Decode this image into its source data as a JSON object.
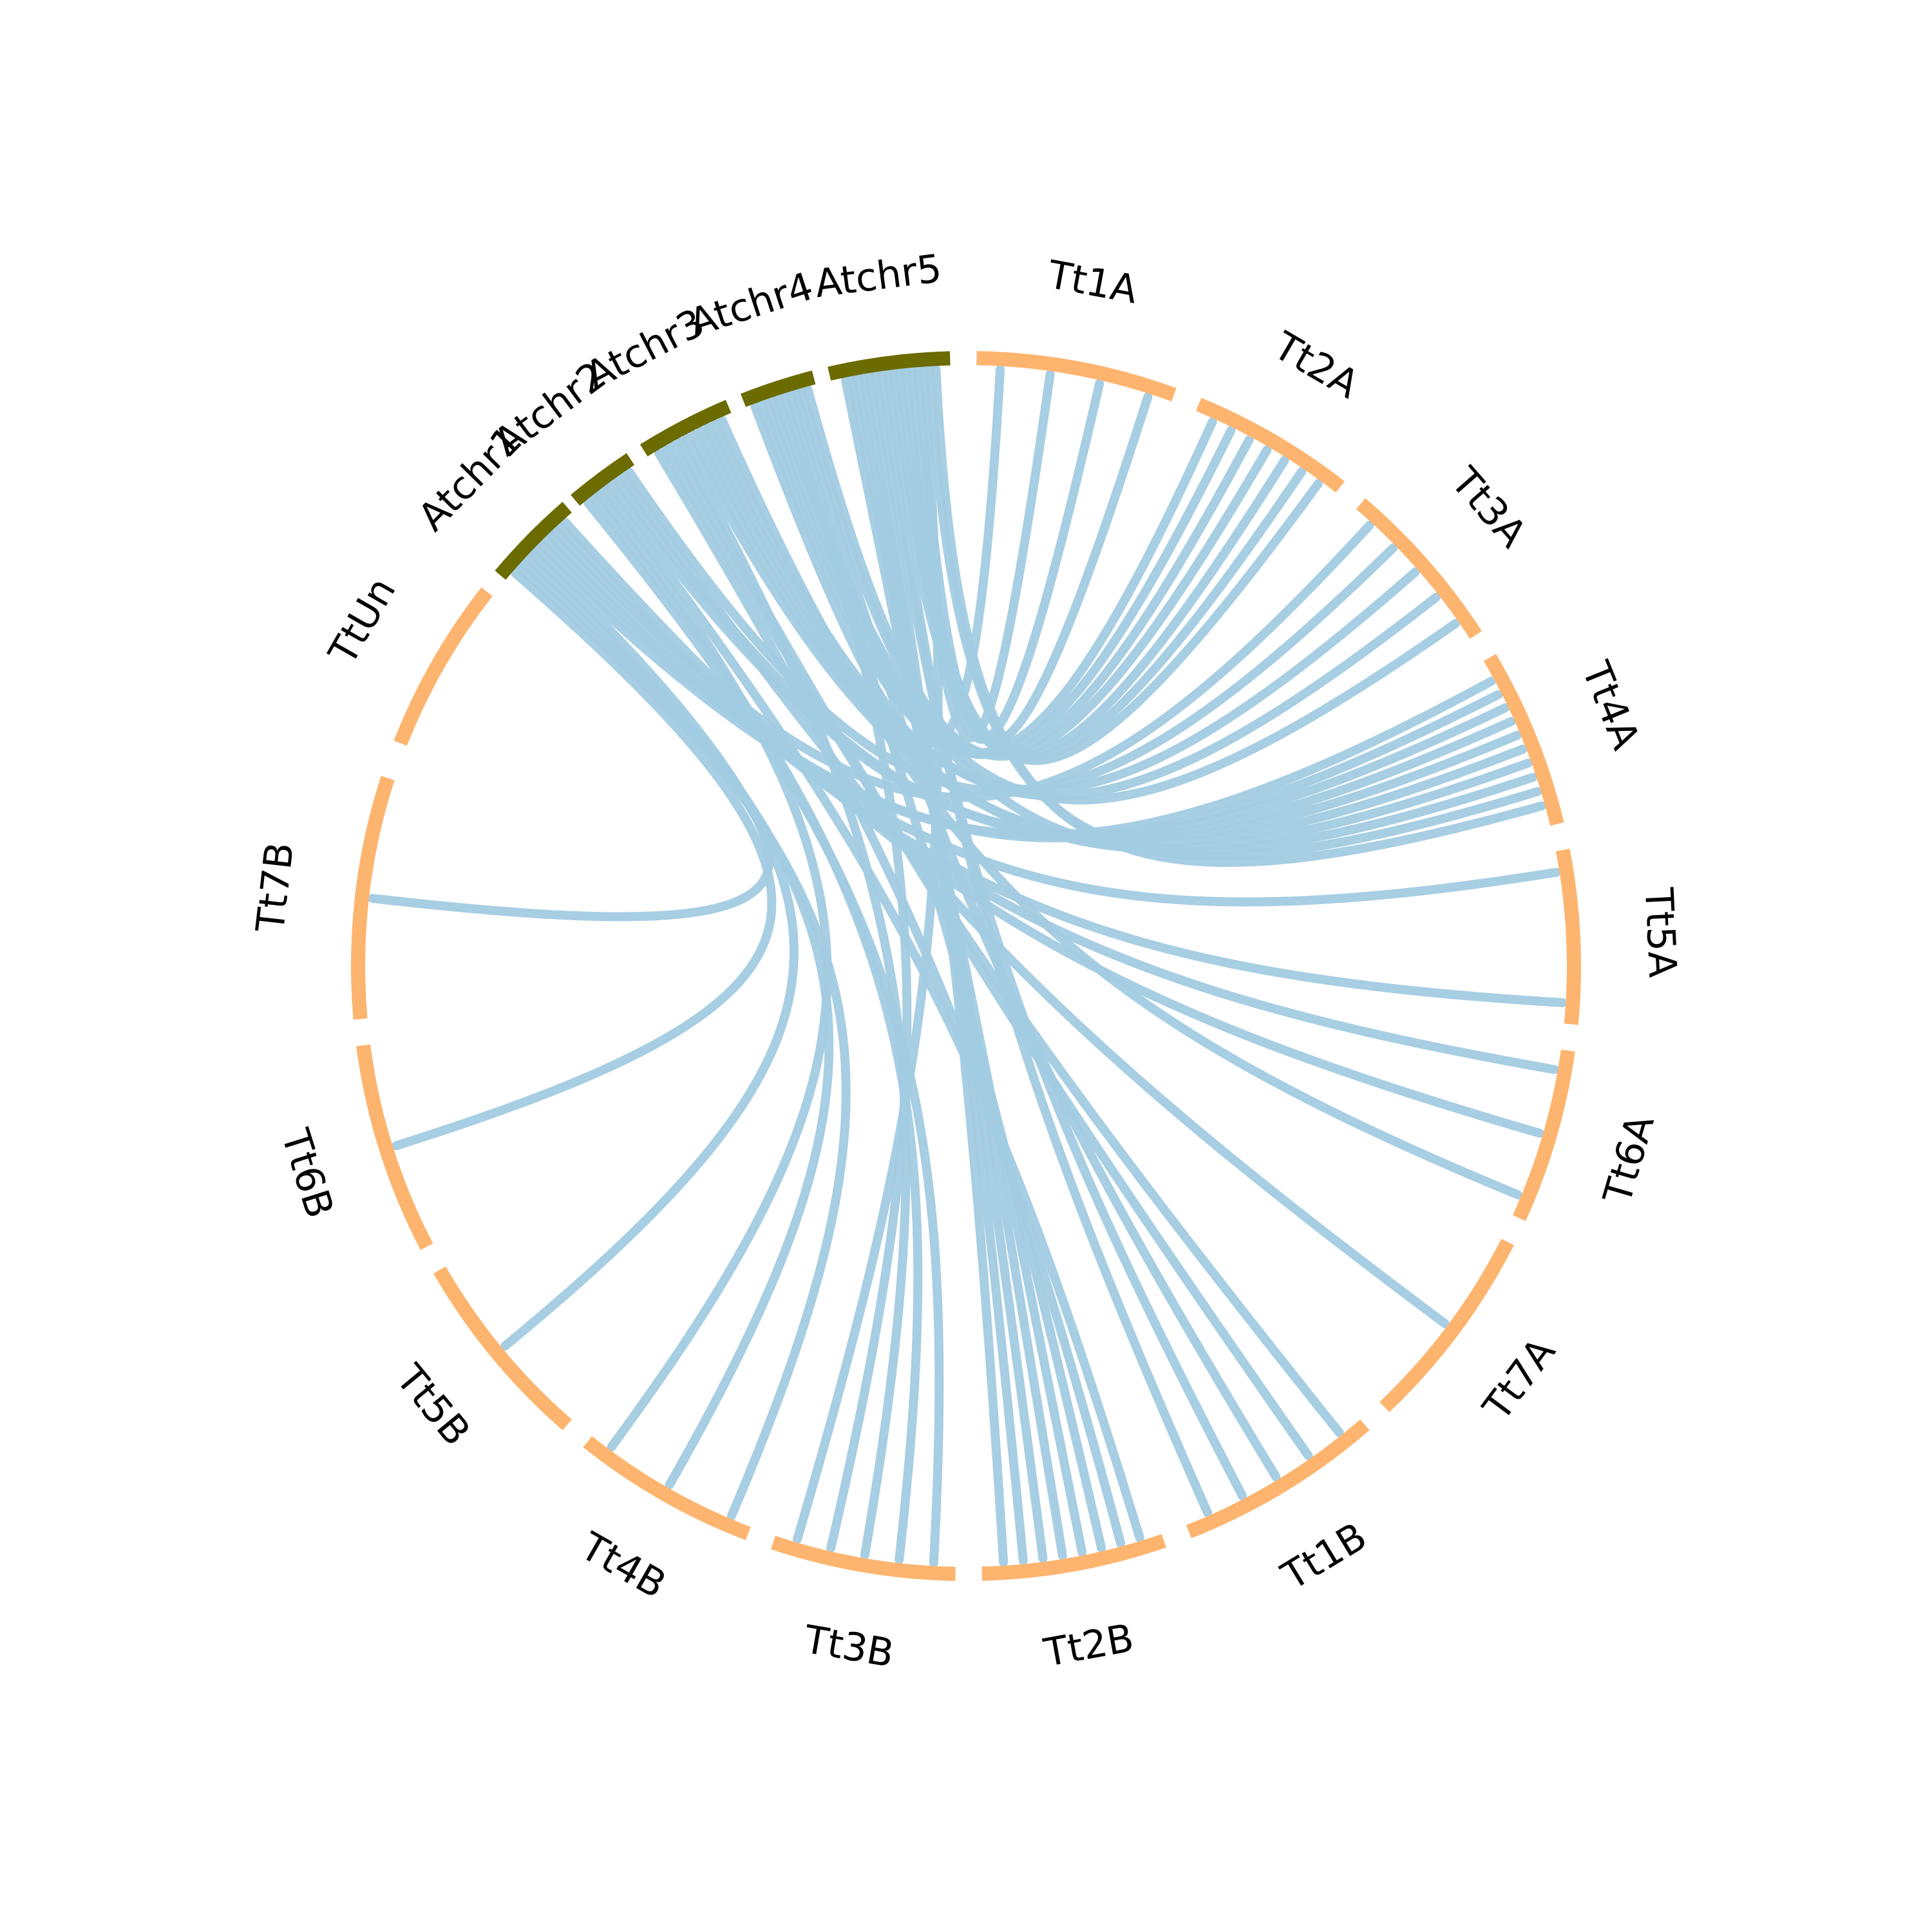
{
  "colors": {
    "wheat": "#fdb46e",
    "arabidopsis": "#6b6b00",
    "link": "#a2cbe2",
    "label": "#000000"
  },
  "segments": [
    {
      "id": "TtUn",
      "label": "TtUn",
      "group": "wheat"
    },
    {
      "id": "Atchr1",
      "label": "Atchr1",
      "group": "arabidopsis"
    },
    {
      "id": "Atchr2",
      "label": "Atchr2",
      "group": "arabidopsis"
    },
    {
      "id": "Atchr3",
      "label": "Atchr3",
      "group": "arabidopsis"
    },
    {
      "id": "Atchr4",
      "label": "Atchr4",
      "group": "arabidopsis"
    },
    {
      "id": "Atchr5",
      "label": "Atchr5",
      "group": "arabidopsis"
    },
    {
      "id": "Tt1A",
      "label": "Tt1A",
      "group": "wheat"
    },
    {
      "id": "Tt2A",
      "label": "Tt2A",
      "group": "wheat"
    },
    {
      "id": "Tt3A",
      "label": "Tt3A",
      "group": "wheat"
    },
    {
      "id": "Tt4A",
      "label": "Tt4A",
      "group": "wheat"
    },
    {
      "id": "Tt5A",
      "label": "Tt5A",
      "group": "wheat"
    },
    {
      "id": "Tt6A",
      "label": "Tt6A",
      "group": "wheat"
    },
    {
      "id": "Tt7A",
      "label": "Tt7A",
      "group": "wheat"
    },
    {
      "id": "Tt1B",
      "label": "Tt1B",
      "group": "wheat"
    },
    {
      "id": "Tt2B",
      "label": "Tt2B",
      "group": "wheat"
    },
    {
      "id": "Tt3B",
      "label": "Tt3B",
      "group": "wheat"
    },
    {
      "id": "Tt4B",
      "label": "Tt4B",
      "group": "wheat"
    },
    {
      "id": "Tt5B",
      "label": "Tt5B",
      "group": "wheat"
    },
    {
      "id": "Tt6B",
      "label": "Tt6B",
      "group": "wheat"
    },
    {
      "id": "Tt7B",
      "label": "Tt7B",
      "group": "wheat"
    }
  ],
  "links": [
    [
      "Atchr1",
      "Tt6B"
    ],
    [
      "Atchr1",
      "Tt7B"
    ],
    [
      "Atchr1",
      "Tt4B"
    ],
    [
      "Atchr1",
      "Tt4B"
    ],
    [
      "Atchr1",
      "Tt5B"
    ],
    [
      "Atchr1",
      "Tt4A"
    ],
    [
      "Atchr1",
      "Tt4A"
    ],
    [
      "Atchr1",
      "Tt5A"
    ],
    [
      "Atchr1",
      "Tt5A"
    ],
    [
      "Atchr1",
      "Tt3A"
    ],
    [
      "Atchr1",
      "Tt6A"
    ],
    [
      "Atchr1",
      "Tt6A"
    ],
    [
      "Atchr2",
      "Tt3B"
    ],
    [
      "Atchr2",
      "Tt3B"
    ],
    [
      "Atchr2",
      "Tt4B"
    ],
    [
      "Atchr2",
      "Tt2B"
    ],
    [
      "Atchr2",
      "Tt4A"
    ],
    [
      "Atchr2",
      "Tt4A"
    ],
    [
      "Atchr2",
      "Tt7A"
    ],
    [
      "Atchr2",
      "Tt3A"
    ],
    [
      "Atchr3",
      "Tt2B"
    ],
    [
      "Atchr3",
      "Tt1B"
    ],
    [
      "Atchr3",
      "Tt1B"
    ],
    [
      "Atchr3",
      "Tt3B"
    ],
    [
      "Atchr3",
      "Tt4A"
    ],
    [
      "Atchr3",
      "Tt4A"
    ],
    [
      "Atchr3",
      "Tt4A"
    ],
    [
      "Atchr3",
      "Tt3A"
    ],
    [
      "Atchr3",
      "Tt3A"
    ],
    [
      "Atchr3",
      "Tt6A"
    ],
    [
      "Atchr4",
      "Tt1A"
    ],
    [
      "Atchr4",
      "Tt2A"
    ],
    [
      "Atchr4",
      "Tt2A"
    ],
    [
      "Atchr4",
      "Tt3A"
    ],
    [
      "Atchr4",
      "Tt4A"
    ],
    [
      "Atchr4",
      "Tt2B"
    ],
    [
      "Atchr4",
      "Tt3B"
    ],
    [
      "Atchr4",
      "Tt1B"
    ],
    [
      "Atchr4",
      "Tt2A"
    ],
    [
      "Atchr4",
      "Tt2A"
    ],
    [
      "Atchr5",
      "Tt2B"
    ],
    [
      "Atchr5",
      "Tt2B"
    ],
    [
      "Atchr5",
      "Tt2B"
    ],
    [
      "Atchr5",
      "Tt2B"
    ],
    [
      "Atchr5",
      "Tt2B"
    ],
    [
      "Atchr5",
      "Tt1B"
    ],
    [
      "Atchr5",
      "Tt1B"
    ],
    [
      "Atchr5",
      "Tt2A"
    ],
    [
      "Atchr5",
      "Tt2A"
    ],
    [
      "Atchr5",
      "Tt2A"
    ],
    [
      "Atchr5",
      "Tt1A"
    ],
    [
      "Atchr5",
      "Tt1A"
    ],
    [
      "Atchr5",
      "Tt1A"
    ],
    [
      "Atchr5",
      "Tt3B"
    ],
    [
      "Atchr5",
      "Tt4A"
    ],
    [
      "Atchr5",
      "Tt4A"
    ]
  ]
}
